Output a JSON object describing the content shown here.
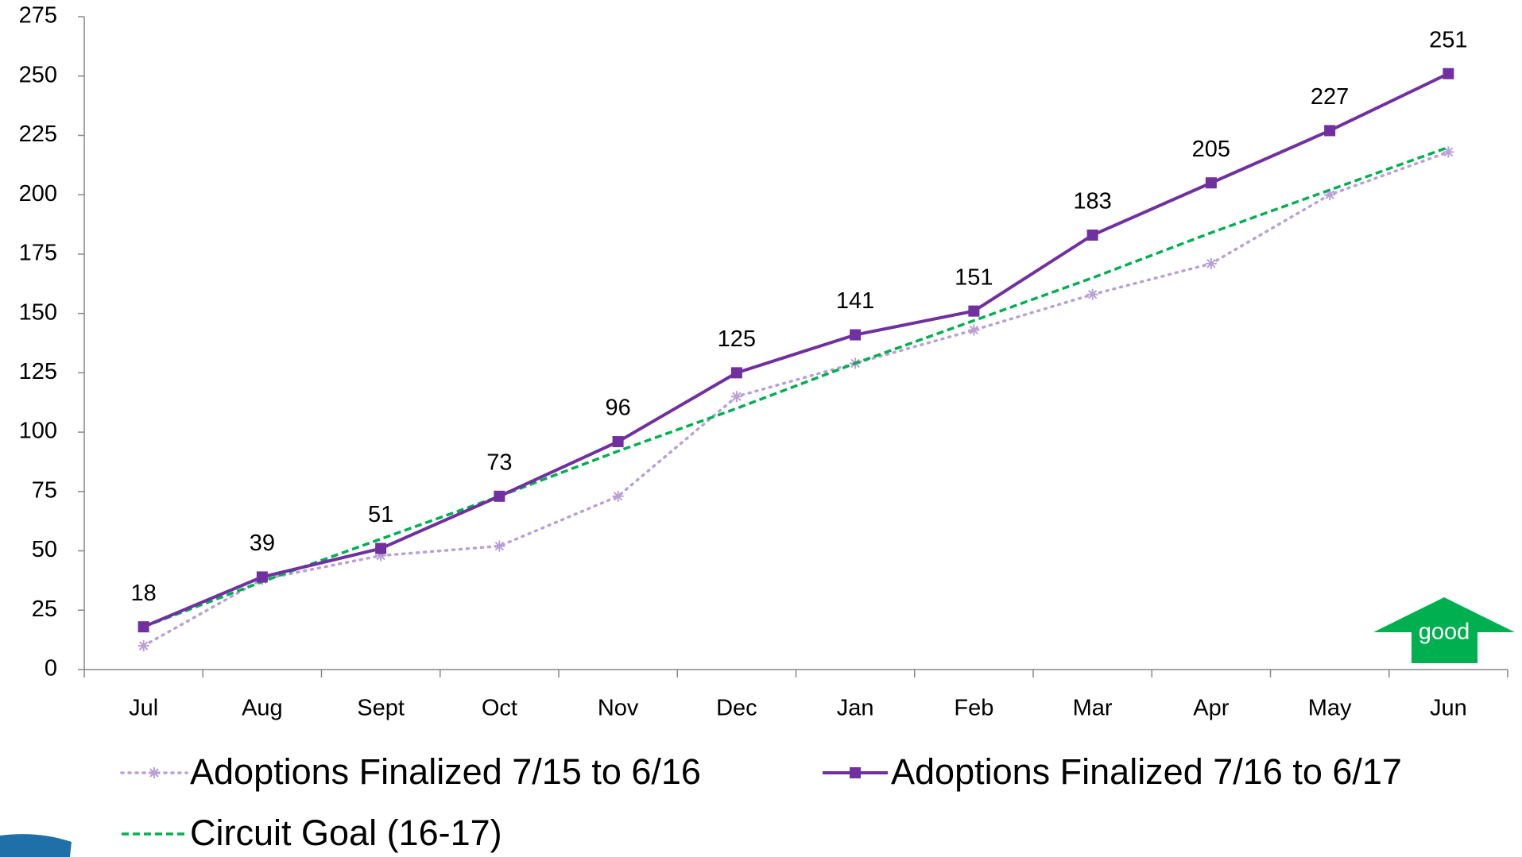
{
  "chart_data": {
    "type": "line",
    "categories": [
      "Jul",
      "Aug",
      "Sept",
      "Oct",
      "Nov",
      "Dec",
      "Jan",
      "Feb",
      "Mar",
      "Apr",
      "May",
      "Jun"
    ],
    "series": [
      {
        "name": "Adoptions Finalized 7/15 to 6/16",
        "color": "#b9a0d6",
        "style": "dotted",
        "marker": "asterisk",
        "values": [
          10,
          38,
          48,
          52,
          73,
          115,
          129,
          143,
          158,
          171,
          200,
          218
        ]
      },
      {
        "name": "Adoptions Finalized 7/16 to 6/17",
        "color": "#7030a0",
        "style": "solid",
        "marker": "square",
        "data_labels": true,
        "values": [
          18,
          39,
          51,
          73,
          96,
          125,
          141,
          151,
          183,
          205,
          227,
          251
        ]
      },
      {
        "name": "Circuit Goal (16-17)",
        "color": "#00b050",
        "style": "dashed",
        "marker": "none",
        "values": [
          18,
          37,
          55,
          73,
          92,
          110,
          129,
          147,
          165,
          184,
          202,
          220
        ]
      }
    ],
    "ylim": [
      0,
      275
    ],
    "yticks": [
      0,
      25,
      50,
      75,
      100,
      125,
      150,
      175,
      200,
      225,
      250,
      275
    ],
    "grid": false,
    "legend": "bottom",
    "annotation": "good"
  }
}
